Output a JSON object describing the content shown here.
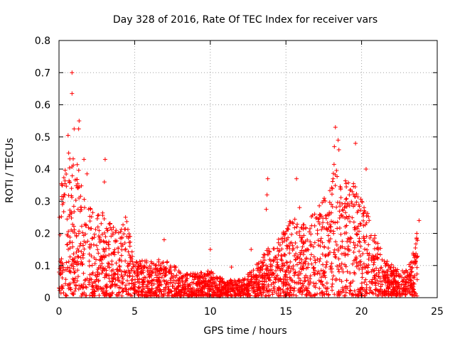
{
  "chart_data": {
    "type": "scatter",
    "title": "Day 328 of 2016, Rate Of TEC Index for receiver vars",
    "xlabel": "GPS time / hours",
    "ylabel": "ROTI / TECUs",
    "xlim": [
      0,
      25
    ],
    "ylim": [
      0,
      0.8
    ],
    "x_ticks": [
      0,
      5,
      10,
      15,
      20,
      25
    ],
    "x_tick_labels": [
      "0",
      "5",
      "10",
      "15",
      "20",
      "25"
    ],
    "y_ticks": [
      0,
      0.1,
      0.2,
      0.3,
      0.4,
      0.5,
      0.6,
      0.7,
      0.8
    ],
    "y_tick_labels": [
      "0",
      "0.1",
      "0.2",
      "0.3",
      "0.4",
      "0.5",
      "0.6",
      "0.7",
      "0.8"
    ],
    "grid": true,
    "marker": "+",
    "color": "#ff0000",
    "series": [
      {
        "name": "ROTI",
        "envelope": [
          [
            0.0,
            0.3
          ],
          [
            0.2,
            0.38
          ],
          [
            0.5,
            0.4
          ],
          [
            0.8,
            0.45
          ],
          [
            1.0,
            0.42
          ],
          [
            1.3,
            0.45
          ],
          [
            1.6,
            0.33
          ],
          [
            2.0,
            0.28
          ],
          [
            2.5,
            0.25
          ],
          [
            3.0,
            0.27
          ],
          [
            3.5,
            0.22
          ],
          [
            4.0,
            0.2
          ],
          [
            4.4,
            0.25
          ],
          [
            4.8,
            0.17
          ],
          [
            5.2,
            0.11
          ],
          [
            6.0,
            0.11
          ],
          [
            7.0,
            0.12
          ],
          [
            8.0,
            0.08
          ],
          [
            9.0,
            0.07
          ],
          [
            10.0,
            0.08
          ],
          [
            10.5,
            0.06
          ],
          [
            11.0,
            0.05
          ],
          [
            12.0,
            0.05
          ],
          [
            12.8,
            0.08
          ],
          [
            13.5,
            0.13
          ],
          [
            14.0,
            0.16
          ],
          [
            14.8,
            0.2
          ],
          [
            15.5,
            0.25
          ],
          [
            16.0,
            0.22
          ],
          [
            16.5,
            0.25
          ],
          [
            17.0,
            0.28
          ],
          [
            17.5,
            0.3
          ],
          [
            18.0,
            0.37
          ],
          [
            18.3,
            0.45
          ],
          [
            18.6,
            0.4
          ],
          [
            19.0,
            0.35
          ],
          [
            19.5,
            0.4
          ],
          [
            20.0,
            0.3
          ],
          [
            20.5,
            0.25
          ],
          [
            21.0,
            0.18
          ],
          [
            21.5,
            0.12
          ],
          [
            22.0,
            0.1
          ],
          [
            22.5,
            0.08
          ],
          [
            23.0,
            0.08
          ],
          [
            23.5,
            0.15
          ],
          [
            23.7,
            0.2
          ]
        ],
        "outliers": [
          [
            0.86,
            0.7
          ],
          [
            0.86,
            0.635
          ],
          [
            1.33,
            0.55
          ],
          [
            0.6,
            0.505
          ],
          [
            1.3,
            0.525
          ],
          [
            1.0,
            0.525
          ],
          [
            0.64,
            0.45
          ],
          [
            1.65,
            0.43
          ],
          [
            3.05,
            0.43
          ],
          [
            1.85,
            0.385
          ],
          [
            3.0,
            0.36
          ],
          [
            13.8,
            0.37
          ],
          [
            15.7,
            0.37
          ],
          [
            18.27,
            0.53
          ],
          [
            18.45,
            0.49
          ],
          [
            19.6,
            0.48
          ],
          [
            18.2,
            0.47
          ],
          [
            18.5,
            0.46
          ],
          [
            20.3,
            0.4
          ],
          [
            13.75,
            0.32
          ],
          [
            13.7,
            0.275
          ],
          [
            4.4,
            0.25
          ],
          [
            6.95,
            0.18
          ],
          [
            12.7,
            0.15
          ],
          [
            10.0,
            0.15
          ],
          [
            11.4,
            0.095
          ],
          [
            23.8,
            0.24
          ],
          [
            23.65,
            0.2
          ],
          [
            15.9,
            0.28
          ],
          [
            16.9,
            0.26
          ]
        ]
      }
    ]
  }
}
